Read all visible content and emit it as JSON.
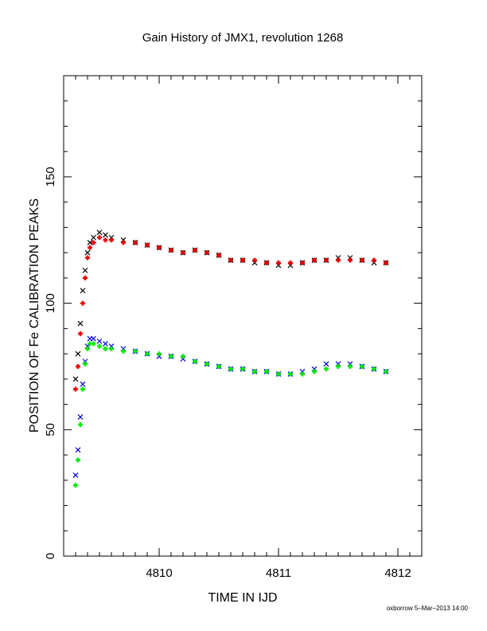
{
  "chart_data": {
    "type": "scatter",
    "title": "Gain History of JMX1, revolution 1268",
    "xlabel": "TIME IN IJD",
    "ylabel": "POSITION OF Fe CALIBRATION PEAKS",
    "xlim": [
      4809.2,
      4812.2
    ],
    "ylim": [
      0,
      190
    ],
    "xticks": [
      4810,
      4811,
      4812
    ],
    "yticks": [
      0,
      50,
      100,
      150
    ],
    "xtick_labels": [
      "4810",
      "4811",
      "4812"
    ],
    "ytick_labels": [
      "0",
      "50",
      "100",
      "150"
    ],
    "grid": false,
    "legend": "none",
    "footer": "oxborrow  5–Mar–2013 14:00",
    "series": [
      {
        "marker": "cross",
        "color": "#000000",
        "x": [
          4809.3,
          4809.32,
          4809.34,
          4809.36,
          4809.38,
          4809.4,
          4809.42,
          4809.45,
          4809.5,
          4809.55,
          4809.6,
          4809.7,
          4809.8,
          4809.9,
          4810.0,
          4810.1,
          4810.2,
          4810.3,
          4810.4,
          4810.5,
          4810.6,
          4810.7,
          4810.8,
          4810.9,
          4811.0,
          4811.1,
          4811.2,
          4811.3,
          4811.4,
          4811.5,
          4811.6,
          4811.7,
          4811.8,
          4811.9
        ],
        "y": [
          70,
          80,
          92,
          105,
          113,
          120,
          124,
          126,
          128,
          127,
          126,
          125,
          124,
          123,
          122,
          121,
          120,
          121,
          120,
          119,
          117,
          117,
          116,
          116,
          115,
          115,
          116,
          117,
          117,
          118,
          118,
          117,
          116,
          116
        ]
      },
      {
        "marker": "plus",
        "color": "#ee0000",
        "x": [
          4809.3,
          4809.32,
          4809.34,
          4809.36,
          4809.38,
          4809.4,
          4809.42,
          4809.45,
          4809.5,
          4809.55,
          4809.6,
          4809.7,
          4809.8,
          4809.9,
          4810.0,
          4810.1,
          4810.2,
          4810.3,
          4810.4,
          4810.5,
          4810.6,
          4810.7,
          4810.8,
          4810.9,
          4811.0,
          4811.1,
          4811.2,
          4811.3,
          4811.4,
          4811.5,
          4811.6,
          4811.7,
          4811.8,
          4811.9
        ],
        "y": [
          66,
          75,
          88,
          100,
          110,
          118,
          122,
          124,
          126,
          125,
          125,
          124,
          124,
          123,
          122,
          121,
          120,
          121,
          120,
          119,
          117,
          117,
          117,
          116,
          116,
          116,
          116,
          117,
          117,
          117,
          117,
          117,
          117,
          116
        ]
      },
      {
        "marker": "cross",
        "color": "#0000dd",
        "x": [
          4809.3,
          4809.32,
          4809.34,
          4809.36,
          4809.38,
          4809.4,
          4809.42,
          4809.45,
          4809.5,
          4809.55,
          4809.6,
          4809.7,
          4809.8,
          4809.9,
          4810.0,
          4810.1,
          4810.2,
          4810.3,
          4810.4,
          4810.5,
          4810.6,
          4810.7,
          4810.8,
          4810.9,
          4811.0,
          4811.1,
          4811.2,
          4811.3,
          4811.4,
          4811.5,
          4811.6,
          4811.7,
          4811.8,
          4811.9
        ],
        "y": [
          32,
          42,
          55,
          68,
          77,
          83,
          86,
          86,
          85,
          84,
          83,
          82,
          81,
          80,
          79,
          79,
          78,
          77,
          76,
          75,
          74,
          74,
          73,
          73,
          72,
          72,
          73,
          74,
          76,
          76,
          76,
          75,
          74,
          73
        ]
      },
      {
        "marker": "plus",
        "color": "#00ee00",
        "x": [
          4809.3,
          4809.32,
          4809.34,
          4809.36,
          4809.38,
          4809.4,
          4809.42,
          4809.45,
          4809.5,
          4809.55,
          4809.6,
          4809.7,
          4809.8,
          4809.9,
          4810.0,
          4810.1,
          4810.2,
          4810.3,
          4810.4,
          4810.5,
          4810.6,
          4810.7,
          4810.8,
          4810.9,
          4811.0,
          4811.1,
          4811.2,
          4811.3,
          4811.4,
          4811.5,
          4811.6,
          4811.7,
          4811.8,
          4811.9
        ],
        "y": [
          28,
          38,
          52,
          66,
          76,
          82,
          84,
          84,
          83,
          82,
          82,
          81,
          81,
          80,
          80,
          79,
          79,
          77,
          76,
          75,
          74,
          74,
          73,
          73,
          72,
          72,
          72,
          73,
          74,
          75,
          75,
          75,
          74,
          73
        ]
      }
    ]
  }
}
